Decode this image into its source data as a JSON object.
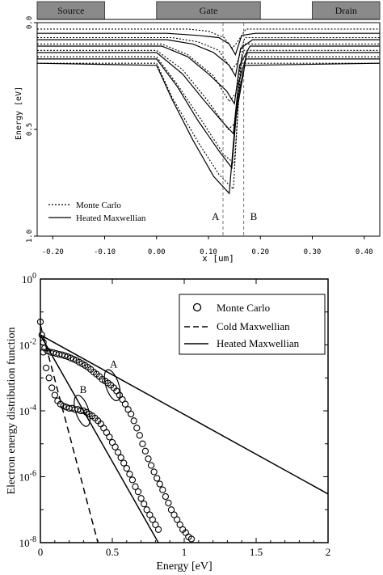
{
  "chart_data": [
    {
      "type": "line",
      "regions": [
        {
          "label": "Source",
          "x_start": -0.23,
          "x_end": -0.1
        },
        {
          "label": "Gate",
          "x_start": 0.0,
          "x_end": 0.2
        },
        {
          "label": "Drain",
          "x_start": 0.3,
          "x_end": 0.43
        }
      ],
      "xlabel": "x [um]",
      "ylabel": "Energy [eV]",
      "xlim": [
        -0.23,
        0.43
      ],
      "ylim": [
        1.0,
        0.0
      ],
      "x_ticks": [
        "-0.20",
        "-0.10",
        "0.00",
        "0.10",
        "0.20",
        "0.30",
        "0.40"
      ],
      "y_ticks": [
        "0.0",
        "0.5",
        "1.0"
      ],
      "legend": {
        "position": "bottom-left",
        "entries": [
          "Monte Carlo",
          "Heated Maxwellian"
        ]
      },
      "markers": [
        {
          "label": "A",
          "x": 0.128
        },
        {
          "label": "B",
          "x": 0.168
        }
      ],
      "series": [
        {
          "name": "Heated Maxwellian",
          "style": "solid",
          "curves": [
            [
              [
                -0.23,
                0.05
              ],
              [
                0.02,
                0.05
              ],
              [
                0.08,
                0.06
              ],
              [
                0.12,
                0.07
              ],
              [
                0.14,
                0.1
              ],
              [
                0.152,
                0.15
              ],
              [
                0.164,
                0.06
              ],
              [
                0.19,
                0.05
              ],
              [
                0.43,
                0.05
              ]
            ],
            [
              [
                -0.23,
                0.08
              ],
              [
                0.02,
                0.08
              ],
              [
                0.07,
                0.1
              ],
              [
                0.11,
                0.14
              ],
              [
                0.14,
                0.2
              ],
              [
                0.152,
                0.25
              ],
              [
                0.162,
                0.12
              ],
              [
                0.185,
                0.08
              ],
              [
                0.43,
                0.08
              ]
            ],
            [
              [
                -0.23,
                0.11
              ],
              [
                0.01,
                0.11
              ],
              [
                0.06,
                0.16
              ],
              [
                0.1,
                0.24
              ],
              [
                0.135,
                0.32
              ],
              [
                0.15,
                0.38
              ],
              [
                0.16,
                0.2
              ],
              [
                0.18,
                0.11
              ],
              [
                0.43,
                0.11
              ]
            ],
            [
              [
                -0.23,
                0.14
              ],
              [
                0.0,
                0.14
              ],
              [
                0.05,
                0.24
              ],
              [
                0.09,
                0.36
              ],
              [
                0.125,
                0.46
              ],
              [
                0.148,
                0.52
              ],
              [
                0.158,
                0.28
              ],
              [
                0.175,
                0.14
              ],
              [
                0.43,
                0.14
              ]
            ],
            [
              [
                -0.23,
                0.17
              ],
              [
                0.0,
                0.17
              ],
              [
                0.04,
                0.3
              ],
              [
                0.08,
                0.46
              ],
              [
                0.12,
                0.6
              ],
              [
                0.145,
                0.68
              ],
              [
                0.156,
                0.36
              ],
              [
                0.172,
                0.17
              ],
              [
                0.43,
                0.17
              ]
            ],
            [
              [
                -0.23,
                0.19
              ],
              [
                0.0,
                0.2
              ],
              [
                0.03,
                0.36
              ],
              [
                0.07,
                0.55
              ],
              [
                0.11,
                0.72
              ],
              [
                0.14,
                0.8
              ],
              [
                0.152,
                0.45
              ],
              [
                0.17,
                0.2
              ],
              [
                0.43,
                0.19
              ]
            ]
          ]
        },
        {
          "name": "Monte Carlo",
          "style": "dotted",
          "curves": [
            [
              [
                -0.23,
                0.03
              ],
              [
                0.06,
                0.03
              ],
              [
                0.1,
                0.04
              ],
              [
                0.13,
                0.07
              ],
              [
                0.146,
                0.12
              ],
              [
                0.156,
                0.09
              ],
              [
                0.172,
                0.03
              ],
              [
                0.43,
                0.03
              ]
            ],
            [
              [
                -0.23,
                0.07
              ],
              [
                0.03,
                0.07
              ],
              [
                0.08,
                0.09
              ],
              [
                0.12,
                0.13
              ],
              [
                0.145,
                0.22
              ],
              [
                0.155,
                0.19
              ],
              [
                0.17,
                0.07
              ],
              [
                0.43,
                0.07
              ]
            ],
            [
              [
                -0.23,
                0.1
              ],
              [
                0.01,
                0.1
              ],
              [
                0.06,
                0.15
              ],
              [
                0.11,
                0.25
              ],
              [
                0.14,
                0.37
              ],
              [
                0.153,
                0.33
              ],
              [
                0.168,
                0.1
              ],
              [
                0.43,
                0.1
              ]
            ],
            [
              [
                -0.23,
                0.13
              ],
              [
                0.0,
                0.13
              ],
              [
                0.05,
                0.22
              ],
              [
                0.1,
                0.37
              ],
              [
                0.138,
                0.5
              ],
              [
                0.152,
                0.47
              ],
              [
                0.166,
                0.13
              ],
              [
                0.43,
                0.13
              ]
            ],
            [
              [
                -0.23,
                0.16
              ],
              [
                0.0,
                0.16
              ],
              [
                0.04,
                0.29
              ],
              [
                0.09,
                0.47
              ],
              [
                0.13,
                0.62
              ],
              [
                0.15,
                0.66
              ],
              [
                0.164,
                0.16
              ],
              [
                0.43,
                0.16
              ]
            ],
            [
              [
                -0.23,
                0.19
              ],
              [
                0.0,
                0.19
              ],
              [
                0.03,
                0.35
              ],
              [
                0.08,
                0.56
              ],
              [
                0.12,
                0.71
              ],
              [
                0.148,
                0.78
              ],
              [
                0.162,
                0.19
              ],
              [
                0.43,
                0.19
              ]
            ]
          ]
        }
      ]
    },
    {
      "type": "scatter",
      "xlabel": "Energy [eV]",
      "ylabel": "Electron energy distribution function",
      "xlim": [
        0,
        2
      ],
      "ylim": [
        1e-08,
        1
      ],
      "y_scale": "log",
      "x_ticks": [
        "0",
        "0.5",
        "1",
        "1.5",
        "2"
      ],
      "y_ticks": [
        {
          "base": "10",
          "exp": "0"
        },
        {
          "base": "10",
          "exp": "-2"
        },
        {
          "base": "10",
          "exp": "-4"
        },
        {
          "base": "10",
          "exp": "-6"
        },
        {
          "base": "10",
          "exp": "-8"
        }
      ],
      "legend": {
        "position": "top-right",
        "entries": [
          "Monte Carlo",
          "Cold Maxwellian",
          "Heated Maxwellian"
        ]
      },
      "annotations": [
        {
          "label": "A",
          "x": 0.5,
          "y": 0.0006
        },
        {
          "label": "B",
          "x": 0.29,
          "y": 0.0001
        }
      ],
      "series": [
        {
          "name": "Monte Carlo",
          "style": "circles",
          "curve": "A",
          "points": [
            [
              0.0,
              0.05
            ],
            [
              0.01,
              0.02
            ],
            [
              0.02,
              0.012
            ],
            [
              0.03,
              0.008
            ],
            [
              0.05,
              0.0065
            ],
            [
              0.07,
              0.006
            ],
            [
              0.09,
              0.0058
            ],
            [
              0.11,
              0.0055
            ],
            [
              0.13,
              0.0052
            ],
            [
              0.15,
              0.005
            ],
            [
              0.17,
              0.0047
            ],
            [
              0.19,
              0.0044
            ],
            [
              0.21,
              0.004
            ],
            [
              0.23,
              0.0037
            ],
            [
              0.25,
              0.0034
            ],
            [
              0.27,
              0.003
            ],
            [
              0.29,
              0.0027
            ],
            [
              0.31,
              0.0024
            ],
            [
              0.33,
              0.0021
            ],
            [
              0.35,
              0.0018
            ],
            [
              0.37,
              0.0015
            ],
            [
              0.39,
              0.0013
            ],
            [
              0.41,
              0.0011
            ],
            [
              0.43,
              0.0009
            ],
            [
              0.45,
              0.0008
            ],
            [
              0.47,
              0.0007
            ],
            [
              0.49,
              0.0006
            ],
            [
              0.51,
              0.0005
            ],
            [
              0.53,
              0.0004
            ],
            [
              0.55,
              0.0003
            ],
            [
              0.57,
              0.00022
            ],
            [
              0.59,
              0.00016
            ],
            [
              0.61,
              0.00011
            ],
            [
              0.63,
              8e-05
            ],
            [
              0.65,
              5e-05
            ],
            [
              0.67,
              3e-05
            ],
            [
              0.69,
              1.8e-05
            ],
            [
              0.71,
              1e-05
            ],
            [
              0.73,
              6e-06
            ],
            [
              0.75,
              3.5e-06
            ],
            [
              0.77,
              2.2e-06
            ],
            [
              0.79,
              1.4e-06
            ],
            [
              0.81,
              9e-07
            ],
            [
              0.83,
              6e-07
            ],
            [
              0.85,
              4e-07
            ],
            [
              0.87,
              2.5e-07
            ],
            [
              0.89,
              1.6e-07
            ],
            [
              0.91,
              1e-07
            ],
            [
              0.93,
              7e-08
            ],
            [
              0.95,
              5e-08
            ],
            [
              0.97,
              3.5e-08
            ],
            [
              0.99,
              2.5e-08
            ],
            [
              1.01,
              2e-08
            ],
            [
              1.03,
              1.5e-08
            ],
            [
              1.05,
              1.3e-08
            ]
          ]
        },
        {
          "name": "Monte Carlo",
          "style": "circles",
          "curve": "B",
          "points": [
            [
              0.02,
              0.006
            ],
            [
              0.04,
              0.002
            ],
            [
              0.06,
              0.001
            ],
            [
              0.08,
              0.0005
            ],
            [
              0.1,
              0.0003
            ],
            [
              0.12,
              0.0002
            ],
            [
              0.14,
              0.00016
            ],
            [
              0.16,
              0.00014
            ],
            [
              0.18,
              0.00013
            ],
            [
              0.2,
              0.00012
            ],
            [
              0.22,
              0.00012
            ],
            [
              0.24,
              0.00011
            ],
            [
              0.26,
              0.00011
            ],
            [
              0.28,
              0.0001
            ],
            [
              0.3,
              0.0001
            ],
            [
              0.32,
              9e-05
            ],
            [
              0.34,
              8e-05
            ],
            [
              0.36,
              7e-05
            ],
            [
              0.38,
              6e-05
            ],
            [
              0.4,
              5e-05
            ],
            [
              0.42,
              4e-05
            ],
            [
              0.44,
              3e-05
            ],
            [
              0.46,
              2.2e-05
            ],
            [
              0.48,
              1.6e-05
            ],
            [
              0.5,
              1.1e-05
            ],
            [
              0.52,
              8e-06
            ],
            [
              0.54,
              5.5e-06
            ],
            [
              0.56,
              3.8e-06
            ],
            [
              0.58,
              2.6e-06
            ],
            [
              0.6,
              1.8e-06
            ],
            [
              0.62,
              1.2e-06
            ],
            [
              0.64,
              8e-07
            ],
            [
              0.66,
              5e-07
            ],
            [
              0.68,
              3.5e-07
            ],
            [
              0.7,
              2.2e-07
            ],
            [
              0.72,
              1.5e-07
            ],
            [
              0.74,
              1e-07
            ],
            [
              0.76,
              7e-08
            ],
            [
              0.78,
              5e-08
            ],
            [
              0.8,
              3.5e-08
            ],
            [
              0.82,
              2.5e-08
            ]
          ]
        },
        {
          "name": "Cold Maxwellian",
          "style": "dashed",
          "points": [
            [
              0.0,
              0.04
            ],
            [
              0.4,
              1e-08
            ]
          ]
        },
        {
          "name": "Heated Maxwellian",
          "style": "solid",
          "curve": "A",
          "points": [
            [
              0.0,
              0.02
            ],
            [
              2.0,
              3e-07
            ]
          ]
        },
        {
          "name": "Heated Maxwellian",
          "style": "solid",
          "curve": "B",
          "points": [
            [
              0.0,
              0.02
            ],
            [
              0.82,
              1e-08
            ]
          ]
        }
      ]
    }
  ]
}
